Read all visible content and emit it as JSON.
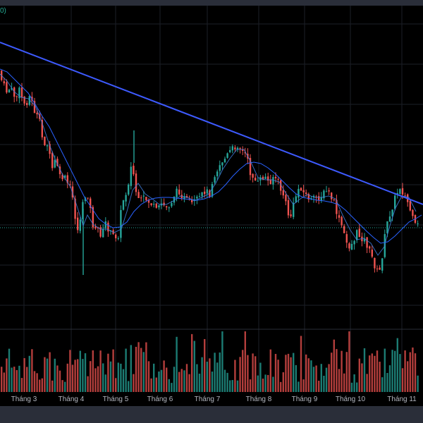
{
  "indicator_tag": "0)",
  "chart_data": {
    "type": "candlestick",
    "title": "",
    "xlabel": "",
    "ylabel": "",
    "grid": true,
    "x_ticks": [
      "Tháng 3",
      "Tháng 4",
      "Tháng 5",
      "Tháng 6",
      "Tháng 7",
      "Tháng 8",
      "Tháng 9",
      "Tháng 10",
      "Tháng 11"
    ],
    "price_path": [
      [
        0,
        100
      ],
      [
        6,
        118
      ],
      [
        12,
        130
      ],
      [
        17,
        125
      ],
      [
        25,
        140
      ],
      [
        30,
        128
      ],
      [
        38,
        150
      ],
      [
        45,
        135
      ],
      [
        52,
        160
      ],
      [
        58,
        170
      ],
      [
        63,
        200
      ],
      [
        70,
        205
      ],
      [
        76,
        240
      ],
      [
        82,
        225
      ],
      [
        88,
        255
      ],
      [
        93,
        250
      ],
      [
        98,
        260
      ],
      [
        104,
        270
      ],
      [
        108,
        300
      ],
      [
        112,
        330
      ],
      [
        116,
        310
      ],
      [
        120,
        290
      ],
      [
        126,
        270
      ],
      [
        131,
        300
      ],
      [
        136,
        330
      ],
      [
        141,
        325
      ],
      [
        147,
        335
      ],
      [
        152,
        315
      ],
      [
        158,
        330
      ],
      [
        164,
        335
      ],
      [
        170,
        335
      ],
      [
        174,
        300
      ],
      [
        178,
        280
      ],
      [
        183,
        270
      ],
      [
        187,
        240
      ],
      [
        190,
        235
      ],
      [
        195,
        270
      ],
      [
        200,
        290
      ],
      [
        205,
        280
      ],
      [
        212,
        285
      ],
      [
        218,
        290
      ],
      [
        225,
        300
      ],
      [
        232,
        288
      ],
      [
        238,
        295
      ],
      [
        244,
        290
      ],
      [
        250,
        275
      ],
      [
        256,
        270
      ],
      [
        262,
        280
      ],
      [
        268,
        285
      ],
      [
        274,
        290
      ],
      [
        280,
        285
      ],
      [
        287,
        280
      ],
      [
        293,
        270
      ],
      [
        300,
        275
      ],
      [
        305,
        250
      ],
      [
        311,
        240
      ],
      [
        316,
        230
      ],
      [
        322,
        225
      ],
      [
        328,
        215
      ],
      [
        334,
        210
      ],
      [
        340,
        205
      ],
      [
        346,
        215
      ],
      [
        352,
        220
      ],
      [
        357,
        245
      ],
      [
        362,
        250
      ],
      [
        367,
        262
      ],
      [
        372,
        255
      ],
      [
        378,
        250
      ],
      [
        384,
        260
      ],
      [
        390,
        250
      ],
      [
        396,
        255
      ],
      [
        401,
        270
      ],
      [
        406,
        280
      ],
      [
        410,
        300
      ],
      [
        414,
        310
      ],
      [
        419,
        290
      ],
      [
        424,
        270
      ],
      [
        429,
        265
      ],
      [
        434,
        275
      ],
      [
        440,
        280
      ],
      [
        445,
        285
      ],
      [
        450,
        280
      ],
      [
        456,
        280
      ],
      [
        461,
        275
      ],
      [
        467,
        270
      ],
      [
        472,
        280
      ],
      [
        477,
        290
      ],
      [
        482,
        310
      ],
      [
        487,
        320
      ],
      [
        492,
        340
      ],
      [
        497,
        350
      ],
      [
        503,
        345
      ],
      [
        508,
        330
      ],
      [
        513,
        335
      ],
      [
        519,
        340
      ],
      [
        524,
        350
      ],
      [
        530,
        365
      ],
      [
        535,
        380
      ],
      [
        540,
        390
      ],
      [
        545,
        360
      ],
      [
        549,
        330
      ],
      [
        553,
        310
      ],
      [
        557,
        300
      ],
      [
        561,
        285
      ],
      [
        565,
        275
      ],
      [
        570,
        265
      ],
      [
        575,
        275
      ],
      [
        580,
        285
      ],
      [
        585,
        300
      ],
      [
        590,
        320
      ]
    ],
    "fast_ma_path": [
      [
        0,
        105
      ],
      [
        10,
        115
      ],
      [
        20,
        130
      ],
      [
        30,
        138
      ],
      [
        40,
        140
      ],
      [
        50,
        150
      ],
      [
        60,
        175
      ],
      [
        70,
        205
      ],
      [
        80,
        230
      ],
      [
        90,
        250
      ],
      [
        100,
        265
      ],
      [
        110,
        295
      ],
      [
        118,
        320
      ],
      [
        124,
        305
      ],
      [
        132,
        318
      ],
      [
        142,
        325
      ],
      [
        152,
        325
      ],
      [
        162,
        330
      ],
      [
        172,
        325
      ],
      [
        180,
        300
      ],
      [
        188,
        270
      ],
      [
        196,
        260
      ],
      [
        206,
        275
      ],
      [
        216,
        282
      ],
      [
        226,
        290
      ],
      [
        236,
        290
      ],
      [
        246,
        285
      ],
      [
        256,
        278
      ],
      [
        266,
        280
      ],
      [
        276,
        285
      ],
      [
        286,
        280
      ],
      [
        296,
        275
      ],
      [
        306,
        260
      ],
      [
        316,
        240
      ],
      [
        326,
        225
      ],
      [
        336,
        212
      ],
      [
        346,
        212
      ],
      [
        356,
        230
      ],
      [
        366,
        252
      ],
      [
        376,
        255
      ],
      [
        386,
        255
      ],
      [
        396,
        258
      ],
      [
        406,
        275
      ],
      [
        416,
        290
      ],
      [
        426,
        282
      ],
      [
        436,
        276
      ],
      [
        446,
        280
      ],
      [
        456,
        280
      ],
      [
        466,
        278
      ],
      [
        476,
        282
      ],
      [
        486,
        305
      ],
      [
        496,
        325
      ],
      [
        506,
        340
      ],
      [
        516,
        338
      ],
      [
        526,
        345
      ],
      [
        536,
        362
      ],
      [
        545,
        350
      ],
      [
        553,
        320
      ],
      [
        561,
        295
      ],
      [
        570,
        278
      ],
      [
        580,
        280
      ],
      [
        590,
        300
      ]
    ],
    "slow_ma_path": [
      [
        0,
        98
      ],
      [
        10,
        102
      ],
      [
        20,
        112
      ],
      [
        30,
        122
      ],
      [
        40,
        132
      ],
      [
        50,
        148
      ],
      [
        60,
        165
      ],
      [
        70,
        180
      ],
      [
        80,
        200
      ],
      [
        90,
        220
      ],
      [
        100,
        240
      ],
      [
        110,
        260
      ],
      [
        120,
        280
      ],
      [
        130,
        295
      ],
      [
        140,
        310
      ],
      [
        150,
        318
      ],
      [
        160,
        323
      ],
      [
        170,
        322
      ],
      [
        180,
        315
      ],
      [
        190,
        300
      ],
      [
        200,
        290
      ],
      [
        210,
        284
      ],
      [
        220,
        281
      ],
      [
        230,
        280
      ],
      [
        240,
        280
      ],
      [
        250,
        281
      ],
      [
        260,
        282
      ],
      [
        270,
        283
      ],
      [
        280,
        284
      ],
      [
        290,
        282
      ],
      [
        300,
        278
      ],
      [
        310,
        272
      ],
      [
        320,
        262
      ],
      [
        330,
        250
      ],
      [
        340,
        240
      ],
      [
        350,
        232
      ],
      [
        360,
        230
      ],
      [
        370,
        232
      ],
      [
        380,
        238
      ],
      [
        390,
        246
      ],
      [
        400,
        256
      ],
      [
        410,
        266
      ],
      [
        420,
        275
      ],
      [
        430,
        280
      ],
      [
        440,
        282
      ],
      [
        450,
        284
      ],
      [
        460,
        285
      ],
      [
        470,
        287
      ],
      [
        480,
        290
      ],
      [
        490,
        298
      ],
      [
        500,
        308
      ],
      [
        510,
        318
      ],
      [
        520,
        328
      ],
      [
        530,
        337
      ],
      [
        540,
        345
      ],
      [
        550,
        343
      ],
      [
        560,
        335
      ],
      [
        570,
        325
      ],
      [
        580,
        315
      ],
      [
        590,
        310
      ],
      [
        598,
        305
      ]
    ],
    "trendline": [
      [
        0,
        60
      ],
      [
        600,
        290
      ]
    ],
    "baseline_price": 323
  }
}
